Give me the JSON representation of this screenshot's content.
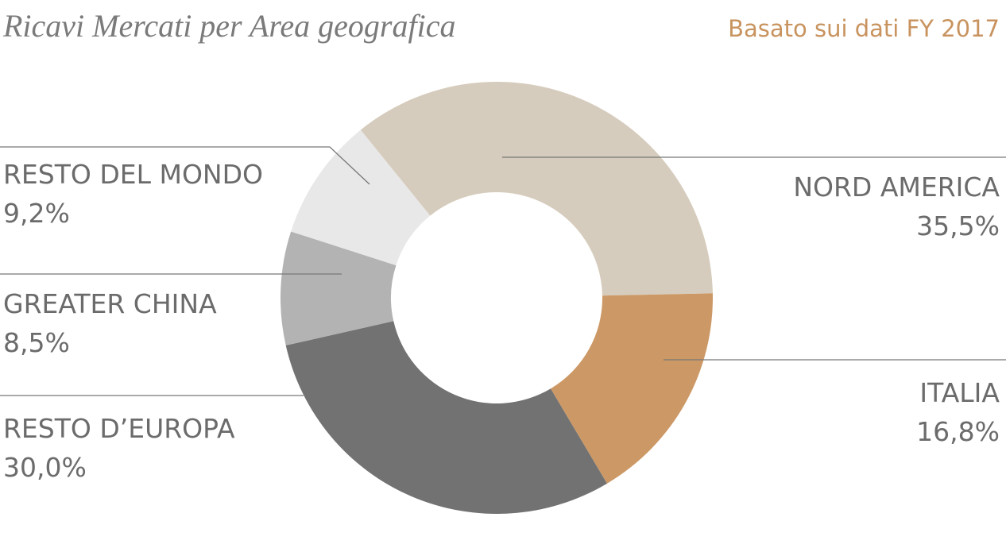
{
  "chart_data": {
    "type": "donut",
    "title": "Ricavi Mercati per Area geografica",
    "subtitle": "Basato sui dati FY 2017",
    "categories": [
      "NORD AMERICA",
      "ITALIA",
      "RESTO D’EUROPA",
      "GREATER CHINA",
      "RESTO DEL MONDO"
    ],
    "values": [
      35.5,
      16.8,
      30.0,
      8.5,
      9.2
    ],
    "value_labels": [
      "35,5%",
      "16,8%",
      "30,0%",
      "8,5%",
      "9,2%"
    ],
    "colors": [
      "#d6ccbd",
      "#cc9966",
      "#727272",
      "#b3b3b3",
      "#e8e8e8"
    ]
  }
}
